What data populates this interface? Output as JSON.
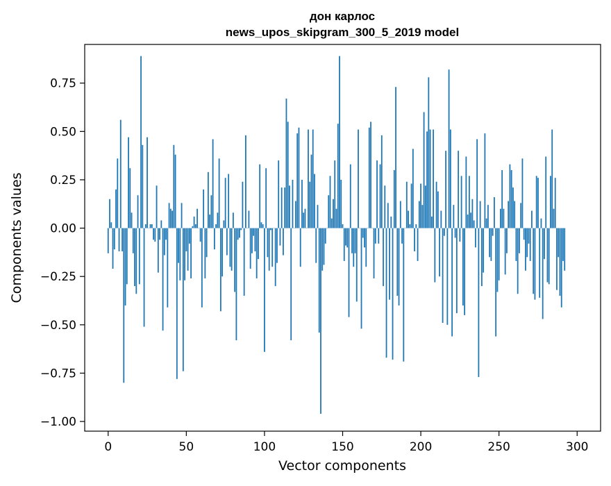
{
  "chart_data": {
    "type": "bar",
    "title": "дон карлос",
    "subtitle": "news_upos_skipgram_300_5_2019 model",
    "xlabel": "Vector components",
    "ylabel": "Components values",
    "xlim": [
      -15,
      315
    ],
    "ylim": [
      -1.05,
      0.95
    ],
    "xticks": [
      0,
      50,
      100,
      150,
      200,
      250,
      300
    ],
    "xtick_labels": [
      "0",
      "50",
      "100",
      "150",
      "200",
      "250",
      "300"
    ],
    "yticks": [
      -1.0,
      -0.75,
      -0.5,
      -0.25,
      0.0,
      0.25,
      0.5,
      0.75
    ],
    "ytick_labels": [
      "−1.00",
      "−0.75",
      "−0.50",
      "−0.25",
      "0.00",
      "0.25",
      "0.50",
      "0.75"
    ],
    "grid": false,
    "bar_color": "#1f77b4",
    "values": [
      -0.13,
      0.15,
      0.03,
      -0.21,
      -0.11,
      0.2,
      0.36,
      -0.12,
      0.56,
      -0.12,
      -0.8,
      -0.4,
      -0.29,
      0.47,
      0.31,
      0.08,
      -0.13,
      -0.3,
      -0.34,
      0.17,
      -0.29,
      0.89,
      0.43,
      -0.51,
      0.02,
      0.47,
      0.0,
      0.02,
      0.02,
      -0.06,
      -0.07,
      0.22,
      -0.23,
      -0.06,
      0.04,
      -0.53,
      -0.14,
      -0.06,
      -0.41,
      0.13,
      0.1,
      0.09,
      0.43,
      0.38,
      -0.78,
      -0.18,
      -0.27,
      0.13,
      -0.74,
      -0.27,
      -0.12,
      -0.22,
      -0.08,
      -0.26,
      0.01,
      0.06,
      0.02,
      0.1,
      0.0,
      -0.07,
      -0.41,
      0.2,
      -0.26,
      -0.15,
      0.29,
      0.07,
      0.17,
      0.46,
      -0.11,
      0.02,
      0.08,
      0.36,
      -0.43,
      -0.25,
      0.04,
      0.26,
      -0.14,
      0.28,
      -0.2,
      -0.22,
      0.08,
      -0.33,
      -0.58,
      -0.06,
      -0.05,
      -0.01,
      0.24,
      -0.35,
      0.48,
      0.0,
      0.09,
      -0.21,
      -0.13,
      -0.04,
      -0.12,
      -0.26,
      -0.16,
      0.33,
      0.03,
      0.02,
      -0.64,
      0.31,
      -0.15,
      -0.22,
      -0.01,
      -0.2,
      0.0,
      -0.3,
      -0.18,
      0.35,
      -0.09,
      0.21,
      -0.14,
      0.21,
      0.67,
      0.55,
      0.22,
      -0.58,
      0.25,
      0.0,
      0.14,
      0.49,
      0.52,
      -0.2,
      0.25,
      0.08,
      0.1,
      0.0,
      0.51,
      0.24,
      0.38,
      0.51,
      0.28,
      -0.18,
      0.12,
      -0.54,
      -0.96,
      -0.22,
      -0.19,
      -0.08,
      0.0,
      0.17,
      0.27,
      0.05,
      0.15,
      0.35,
      0.1,
      0.54,
      0.89,
      0.25,
      0.02,
      -0.17,
      -0.09,
      -0.1,
      -0.46,
      0.33,
      -0.13,
      -0.2,
      -0.13,
      -0.38,
      0.51,
      0.0,
      -0.52,
      -0.05,
      -0.1,
      -0.2,
      0.0,
      0.52,
      0.55,
      0.0,
      -0.26,
      -0.08,
      0.35,
      -0.08,
      0.33,
      0.48,
      -0.3,
      0.22,
      -0.67,
      0.13,
      -0.37,
      0.06,
      -0.68,
      0.3,
      0.73,
      -0.35,
      -0.4,
      0.14,
      -0.08,
      -0.69,
      0.0,
      0.24,
      0.09,
      0.02,
      0.23,
      0.41,
      -0.12,
      0.02,
      -0.17,
      0.14,
      0.23,
      0.12,
      0.6,
      0.22,
      0.5,
      0.78,
      0.51,
      0.06,
      0.51,
      -0.28,
      0.24,
      0.19,
      -0.25,
      0.09,
      -0.49,
      -0.04,
      0.4,
      -0.5,
      0.82,
      0.51,
      -0.56,
      0.12,
      -0.05,
      -0.44,
      0.4,
      -0.07,
      0.27,
      -0.4,
      -0.45,
      0.37,
      0.07,
      0.27,
      0.08,
      0.15,
      0.04,
      -0.1,
      0.46,
      -0.77,
      0.14,
      -0.3,
      -0.23,
      0.49,
      0.05,
      0.12,
      -0.15,
      -0.17,
      -0.04,
      0.16,
      -0.56,
      -0.33,
      -0.27,
      0.1,
      0.3,
      0.1,
      -0.24,
      -0.13,
      0.14,
      0.33,
      0.3,
      0.21,
      0.14,
      -0.17,
      -0.34,
      -0.13,
      0.13,
      0.36,
      -0.06,
      -0.22,
      -0.15,
      -0.08,
      -0.17,
      0.09,
      -0.34,
      -0.37,
      0.27,
      0.26,
      -0.36,
      0.05,
      -0.47,
      -0.16,
      0.37,
      -0.28,
      -0.29,
      0.27,
      0.51,
      0.1,
      0.26,
      -0.32,
      -0.15,
      -0.35,
      -0.41,
      -0.17,
      -0.22
    ]
  }
}
